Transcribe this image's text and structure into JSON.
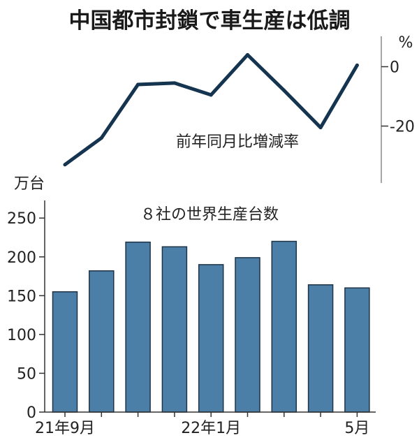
{
  "chart_data": [
    {
      "type": "line",
      "title": "中国都市封鎖で車生産は低調",
      "series_label": "前年同月比増減率",
      "unit": "%",
      "y_ticks": [
        0,
        -20
      ],
      "ylim": [
        -34,
        6
      ],
      "x": [
        "2021-09",
        "2021-10",
        "2021-11",
        "2021-12",
        "2022-01",
        "2022-02",
        "2022-03",
        "2022-04",
        "2022-05"
      ],
      "values": [
        -33,
        -24,
        -6,
        -5.5,
        -9.5,
        4,
        -8,
        -20.5,
        0.5
      ],
      "line_color": "#14344f"
    },
    {
      "type": "bar",
      "title": "８社の世界生産台数",
      "unit": "万台",
      "x_tick_labels": [
        "21年9月",
        "22年1月",
        "5月"
      ],
      "y_ticks": [
        0,
        50,
        100,
        150,
        200,
        250
      ],
      "ylim": [
        0,
        270
      ],
      "x": [
        "2021-09",
        "2021-10",
        "2021-11",
        "2021-12",
        "2022-01",
        "2022-02",
        "2022-03",
        "2022-04",
        "2022-05"
      ],
      "values": [
        155,
        182,
        219,
        213,
        190,
        199,
        220,
        164,
        160
      ],
      "bar_color": "#4b7fa8",
      "bar_edge_color": "#1e3346"
    }
  ]
}
